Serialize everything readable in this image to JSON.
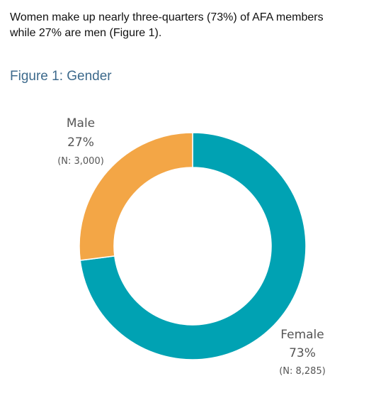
{
  "intro": {
    "line1": "Women make up nearly three-quarters (73%) of AFA members",
    "line2": "while 27% are men (Figure 1)."
  },
  "figure_title": "Figure 1: Gender",
  "chart_data": {
    "type": "pie",
    "title": "Figure 1: Gender",
    "donut": true,
    "categories": [
      "Female",
      "Male"
    ],
    "values": [
      73,
      27
    ],
    "counts": [
      8285,
      3000
    ],
    "labels": {
      "female": {
        "name": "Female",
        "pct": "73%",
        "n": "(N: 8,285)"
      },
      "male": {
        "name": "Male",
        "pct": "27%",
        "n": "(N: 3,000)"
      }
    },
    "colors": {
      "Female": "#00a2b3",
      "Male": "#f3a646"
    }
  }
}
